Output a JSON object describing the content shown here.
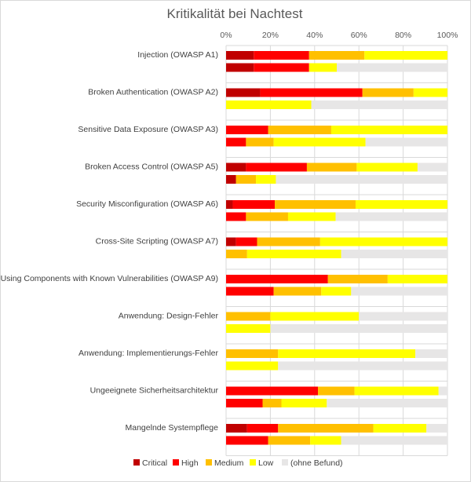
{
  "chart_data": {
    "type": "bar",
    "orientation": "horizontal",
    "stacked": "percent",
    "title": "Kritikalität bei Nachtest",
    "x_ticks": [
      "0%",
      "20%",
      "40%",
      "60%",
      "80%",
      "100%"
    ],
    "xlim": [
      0,
      100
    ],
    "grid": true,
    "legend_position": "bottom",
    "segments": [
      {
        "name": "Critical",
        "color": "#c00000"
      },
      {
        "name": "High",
        "color": "#ff0000"
      },
      {
        "name": "Medium",
        "color": "#ffc000"
      },
      {
        "name": "Low",
        "color": "#ffff00"
      },
      {
        "name": "(ohne Befund)",
        "color": "#e7e6e6"
      }
    ],
    "categories": [
      {
        "label": "Injection (OWASP A1)",
        "bars": [
          [
            12.5,
            25,
            25,
            37.5,
            0
          ],
          [
            12.5,
            25,
            0,
            12.5,
            50
          ]
        ]
      },
      {
        "label": "Broken Authentication (OWASP A2)",
        "bars": [
          [
            15.4,
            46.2,
            23.1,
            15.3,
            0
          ],
          [
            0,
            0,
            0,
            38.5,
            61.5
          ]
        ]
      },
      {
        "label": "Sensitive Data Exposure (OWASP A3)",
        "bars": [
          [
            0,
            19,
            28.5,
            52.5,
            0
          ],
          [
            0,
            9,
            12.5,
            41.5,
            37
          ]
        ]
      },
      {
        "label": "Broken Access Control (OWASP A5)",
        "bars": [
          [
            9,
            27.5,
            22.5,
            27.5,
            13.5
          ],
          [
            4.5,
            0,
            9,
            9,
            77.5
          ]
        ]
      },
      {
        "label": "Security Misconfiguration (OWASP A6)",
        "bars": [
          [
            3,
            19,
            36.5,
            41.5,
            0
          ],
          [
            0,
            9,
            19,
            21.5,
            50.5
          ]
        ]
      },
      {
        "label": "Cross-Site Scripting (OWASP A7)",
        "bars": [
          [
            4.5,
            9.5,
            28.5,
            57.5,
            0
          ],
          [
            0,
            0,
            9.5,
            42.5,
            48
          ]
        ]
      },
      {
        "label": "Using Components with Known Vulnerabilities (OWASP A9)",
        "bars": [
          [
            0,
            46,
            27,
            27,
            0
          ],
          [
            0,
            21.5,
            21.5,
            13.5,
            43.5
          ]
        ]
      },
      {
        "label": "Anwendung: Design-Fehler",
        "bars": [
          [
            0,
            0,
            20,
            40,
            40
          ],
          [
            0,
            0,
            0,
            20,
            80
          ]
        ]
      },
      {
        "label": "Anwendung: Implementierungs-Fehler",
        "bars": [
          [
            0,
            0,
            23.5,
            62,
            14.5
          ],
          [
            0,
            0,
            0,
            23.5,
            76.5
          ]
        ]
      },
      {
        "label": "Ungeeignete Sicherheitsarchitektur",
        "bars": [
          [
            0,
            41.5,
            16.5,
            38,
            4
          ],
          [
            0,
            16.5,
            8.5,
            20.5,
            54.5
          ]
        ]
      },
      {
        "label": "Mangelnde Systempflege",
        "bars": [
          [
            9.5,
            14,
            43,
            24,
            9.5
          ],
          [
            0,
            19,
            19,
            14,
            48
          ]
        ]
      }
    ]
  }
}
